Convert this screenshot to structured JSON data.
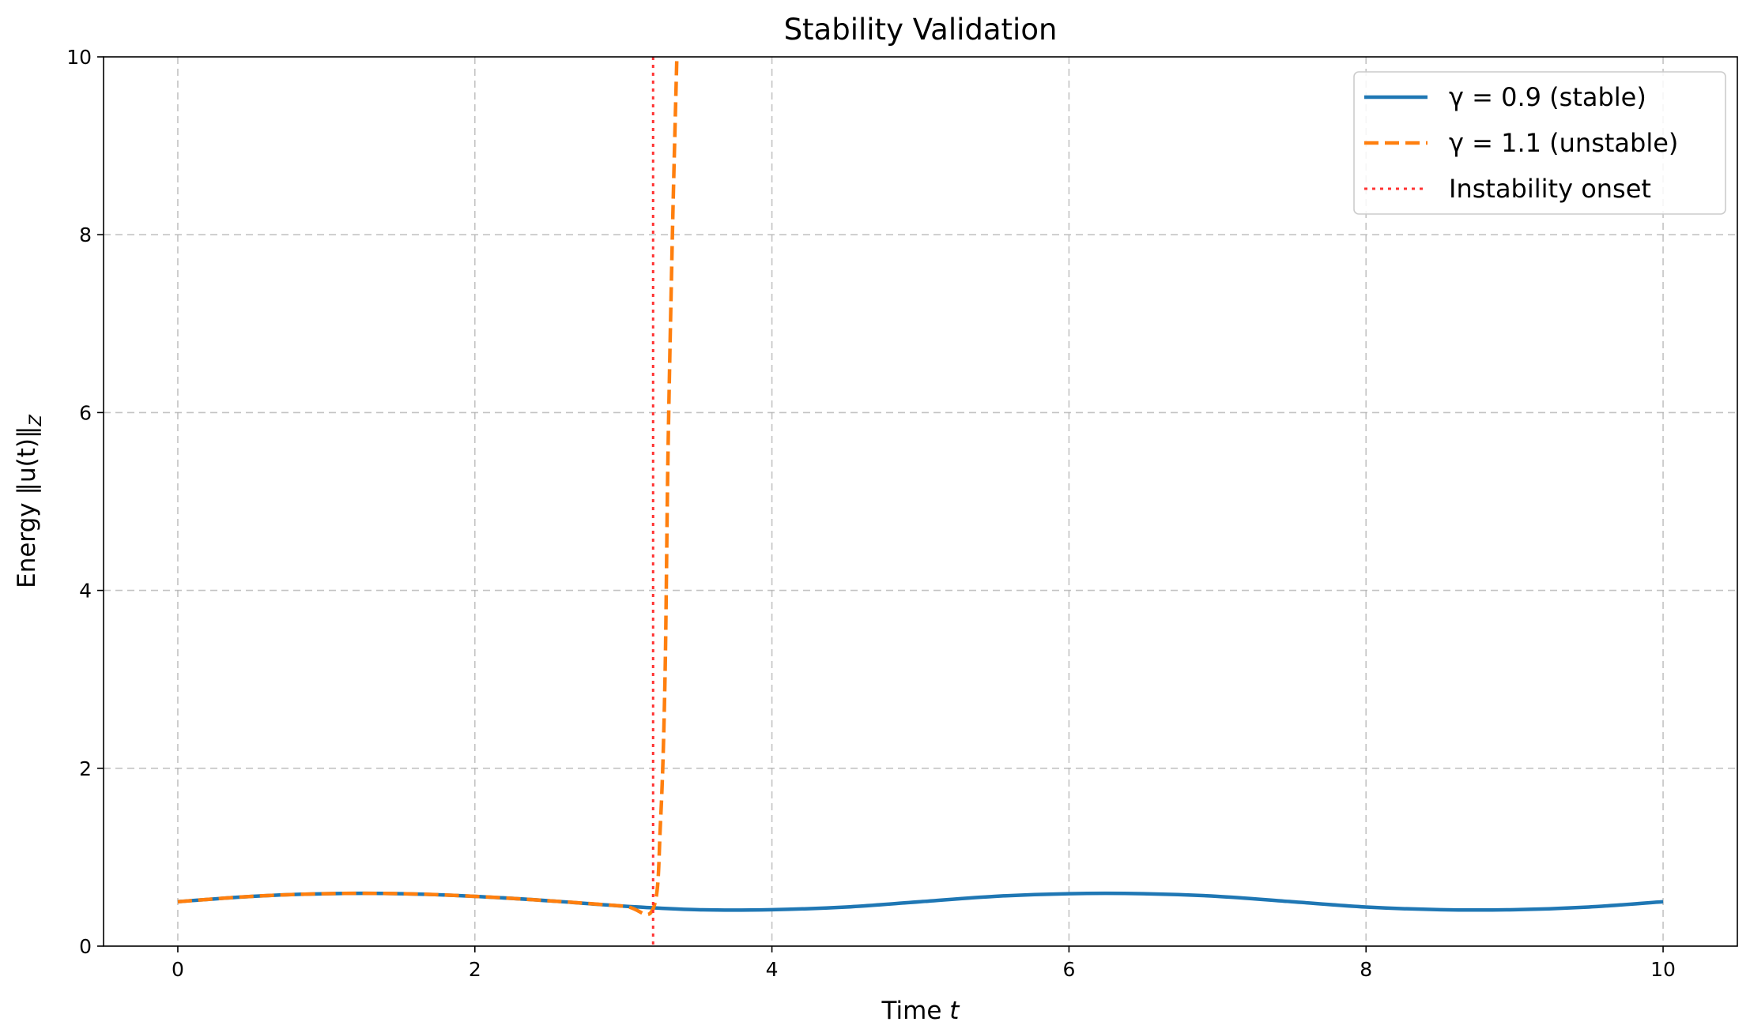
{
  "chart_data": {
    "type": "line",
    "title": "Stability Validation",
    "xlabel": "Time",
    "xlabel_var": "t",
    "ylabel": "Energy ‖u(t)‖",
    "ylabel_sub": "Z",
    "xlim": [
      -0.5,
      10.5
    ],
    "ylim": [
      0,
      10
    ],
    "xticks": [
      "0",
      "2",
      "4",
      "6",
      "8",
      "10"
    ],
    "yticks": [
      "0",
      "2",
      "4",
      "6",
      "8",
      "10"
    ],
    "grid": true,
    "legend_position": "top-right",
    "series": [
      {
        "name": "γ = 0.9 (stable)",
        "color": "#1f77b4",
        "style": "solid",
        "x": [
          0,
          0.5,
          1.0,
          1.5,
          2.0,
          2.5,
          3.0,
          3.5,
          4.0,
          4.5,
          5.0,
          5.5,
          6.0,
          6.5,
          7.0,
          7.5,
          8.0,
          8.5,
          9.0,
          9.5,
          10.0
        ],
        "y": [
          0.5,
          0.56,
          0.59,
          0.59,
          0.56,
          0.51,
          0.45,
          0.41,
          0.41,
          0.44,
          0.5,
          0.56,
          0.59,
          0.59,
          0.56,
          0.5,
          0.44,
          0.41,
          0.41,
          0.44,
          0.5
        ]
      },
      {
        "name": "γ = 1.1 (unstable)",
        "color": "#ff7f0e",
        "style": "dashed",
        "x": [
          0,
          0.5,
          1.0,
          1.5,
          2.0,
          2.5,
          3.0,
          3.2,
          3.25,
          3.28,
          3.3,
          3.33,
          3.36
        ],
        "y": [
          0.5,
          0.56,
          0.59,
          0.59,
          0.56,
          0.51,
          0.45,
          0.42,
          1.4,
          3.0,
          5.5,
          8.0,
          10.0
        ]
      },
      {
        "name": "Instability onset",
        "color": "#ff3333",
        "style": "dotted",
        "vline_x": 3.2
      }
    ]
  }
}
